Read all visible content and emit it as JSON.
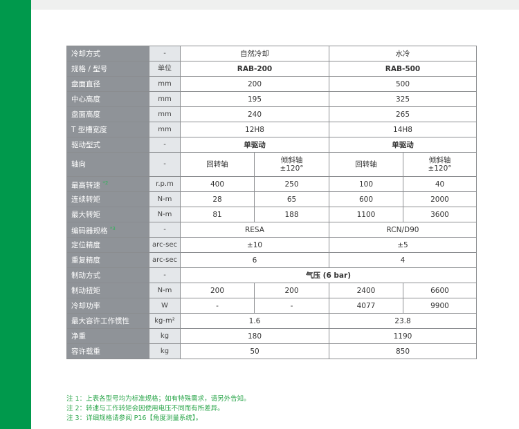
{
  "colors": {
    "sidebar": "#00994c",
    "label_bg": "#8f9398",
    "unit_bg": "#e4e7ea",
    "note": "#2ba64b"
  },
  "table": {
    "cooling": {
      "label": "冷却方式",
      "unit": "-",
      "a": "自然冷却",
      "b": "水冷"
    },
    "model": {
      "label": "规格 / 型号",
      "unit": "单位",
      "a": "RAB-200",
      "b": "RAB-500"
    },
    "rows_merged1": [
      {
        "label": "盘面直径",
        "unit": "mm",
        "a": "200",
        "b": "500"
      },
      {
        "label": "中心高度",
        "unit": "mm",
        "a": "195",
        "b": "325"
      },
      {
        "label": "盘面高度",
        "unit": "mm",
        "a": "240",
        "b": "265"
      },
      {
        "label": "T 型槽宽度",
        "unit": "mm",
        "a": "12H8",
        "b": "14H8"
      },
      {
        "label": "驱动型式",
        "unit": "-",
        "a": "单驱动",
        "b": "单驱动"
      }
    ],
    "axis": {
      "label": "轴向",
      "unit": "-",
      "v": [
        "回转轴",
        "倾斜轴 ±120°",
        "回转轴",
        "倾斜轴 ±120°"
      ],
      "l1": "倾斜轴",
      "l2": "±120°",
      "rot": "回转轴"
    },
    "speed": {
      "label": "最高转速",
      "note": "*2",
      "unit": "r.p.m",
      "v": [
        "400",
        "250",
        "100",
        "40"
      ]
    },
    "cont_torque": {
      "label": "连续转矩",
      "unit": "N-m",
      "v": [
        "28",
        "65",
        "600",
        "2000"
      ]
    },
    "max_torque": {
      "label": "最大转矩",
      "unit": "N-m",
      "v": [
        "81",
        "188",
        "1100",
        "3600"
      ]
    },
    "encoder": {
      "label": "编码器规格",
      "note": "*3",
      "unit": "-",
      "a": "RESA",
      "b": "RCN/D90"
    },
    "pos_acc": {
      "label": "定位精度",
      "unit": "arc-sec",
      "a": "±10",
      "b": "±5"
    },
    "rep_acc": {
      "label": "重复精度",
      "unit": "arc-sec",
      "a": "6",
      "b": "4"
    },
    "brake": {
      "label": "制动方式",
      "unit": "-",
      "v": "气压 (6 bar)"
    },
    "brake_torque": {
      "label": "制动扭矩",
      "unit": "N-m",
      "v": [
        "200",
        "200",
        "2400",
        "6600"
      ]
    },
    "cool_power": {
      "label": "冷却功率",
      "unit": "W",
      "v": [
        "-",
        "-",
        "4077",
        "9900"
      ]
    },
    "inertia": {
      "label": "最大容许工作惯性",
      "unit": "kg-m²",
      "a": "1.6",
      "b": "23.8"
    },
    "net_weight": {
      "label": "净重",
      "unit": "kg",
      "a": "180",
      "b": "1190"
    },
    "load": {
      "label": "容许载重",
      "unit": "kg",
      "a": "50",
      "b": "850"
    }
  },
  "notes": [
    "注 1：上表各型号均为标准规格；如有特殊需求，请另外告知。",
    "注 2：转速与工作转矩会因使用电压不同而有所差异。",
    "注 3：详细规格请参阅 P16【角度测量系统】。"
  ]
}
